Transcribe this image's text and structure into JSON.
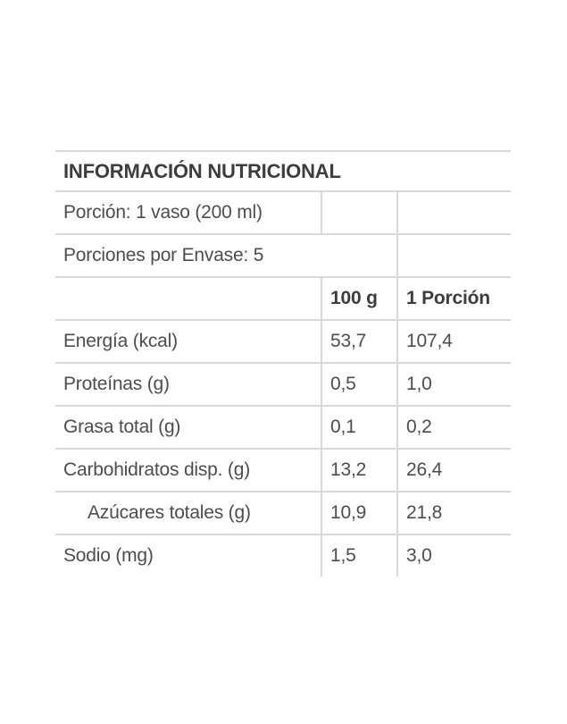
{
  "table": {
    "title": "INFORMACIÓN NUTRICIONAL",
    "meta_rows": [
      {
        "label": "Porción: 1 vaso (200 ml)"
      },
      {
        "label": "Porciones por Envase: 5"
      }
    ],
    "header": {
      "col_100g": "100 g",
      "col_portion": "1 Porción"
    },
    "rows": [
      {
        "label": "Energía (kcal)",
        "per_100g": "53,7",
        "per_portion": "107,4"
      },
      {
        "label": "Proteínas (g)",
        "per_100g": "0,5",
        "per_portion": "1,0"
      },
      {
        "label": "Grasa total (g)",
        "per_100g": "0,1",
        "per_portion": "0,2"
      },
      {
        "label": "Carbohidratos disp. (g)",
        "per_100g": "13,2",
        "per_portion": "26,4"
      },
      {
        "label": "Azúcares totales (g)",
        "per_100g": "10,9",
        "per_portion": "21,8"
      },
      {
        "label": "Sodio (mg)",
        "per_100g": "1,5",
        "per_portion": "3,0"
      }
    ],
    "colors": {
      "border": "#d9d9d9",
      "text": "#4d4d4d",
      "title_text": "#3d3d3d",
      "background": "#ffffff"
    }
  }
}
